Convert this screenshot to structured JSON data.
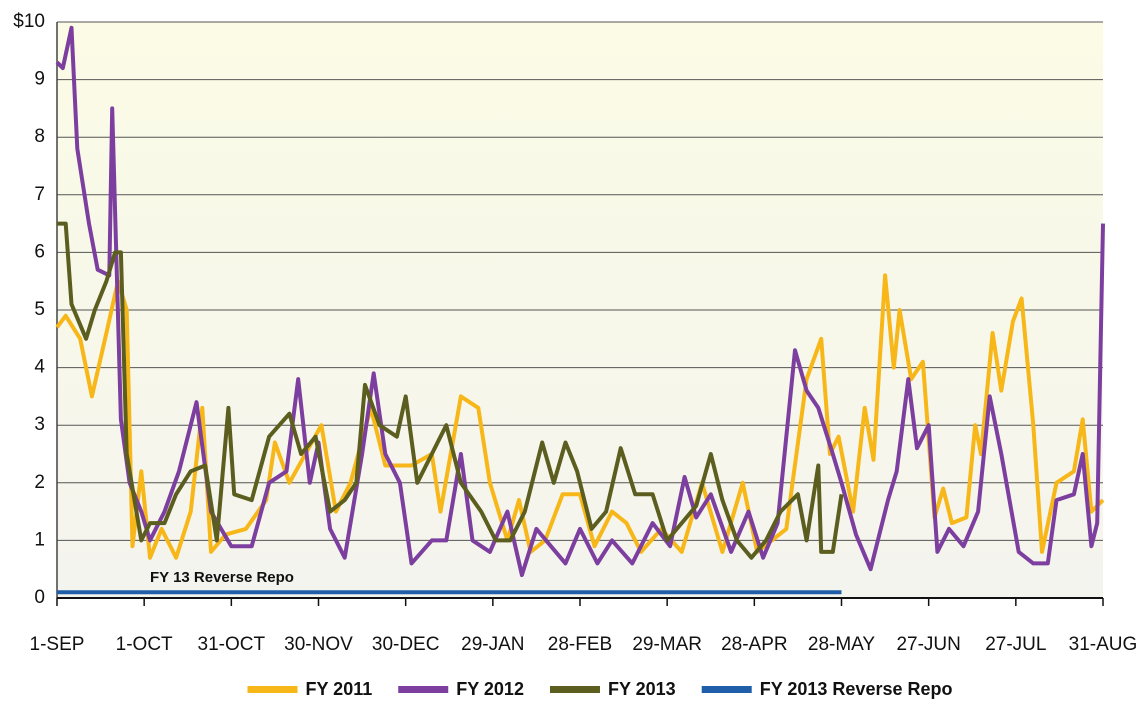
{
  "chart_data": {
    "type": "line",
    "annotation": "FY 13 Reverse Repo",
    "xlim": [
      0,
      360
    ],
    "xticks": [
      {
        "value": 0,
        "label": "1-SEP"
      },
      {
        "value": 30,
        "label": "1-OCT"
      },
      {
        "value": 60,
        "label": "31-OCT"
      },
      {
        "value": 90,
        "label": "30-NOV"
      },
      {
        "value": 120,
        "label": "30-DEC"
      },
      {
        "value": 150,
        "label": "29-JAN"
      },
      {
        "value": 180,
        "label": "28-FEB"
      },
      {
        "value": 210,
        "label": "29-MAR"
      },
      {
        "value": 240,
        "label": "28-APR"
      },
      {
        "value": 270,
        "label": "28-MAY"
      },
      {
        "value": 300,
        "label": "27-JUN"
      },
      {
        "value": 330,
        "label": "27-JUL"
      },
      {
        "value": 360,
        "label": "31-AUG"
      }
    ],
    "ylim": [
      0,
      10
    ],
    "yticks": [
      0,
      1,
      2,
      3,
      4,
      5,
      6,
      7,
      8,
      9,
      {
        "value": 10,
        "label": "$10"
      }
    ],
    "grid": true,
    "legend": "bottom",
    "series": [
      {
        "name": "FY 2011",
        "color": "#f7b718",
        "x": [
          0,
          3,
          8,
          12,
          17,
          21,
          24,
          26,
          29,
          32,
          36,
          41,
          46,
          50,
          53,
          58,
          65,
          72,
          75,
          80,
          91,
          96,
          101,
          108,
          113,
          122,
          129,
          132,
          139,
          145,
          149,
          155,
          159,
          163,
          168,
          174,
          180,
          185,
          191,
          196,
          201,
          208,
          215,
          222,
          229,
          236,
          241,
          246,
          251,
          258,
          263,
          266,
          269,
          274,
          278,
          281,
          285,
          288,
          290,
          294,
          298,
          302,
          305,
          308,
          313,
          316,
          318,
          322,
          325,
          329,
          332,
          336,
          339,
          344,
          350,
          353,
          356,
          360
        ],
        "values": [
          4.7,
          4.9,
          4.5,
          3.5,
          4.6,
          5.5,
          5.0,
          0.9,
          2.2,
          0.7,
          1.2,
          0.7,
          1.5,
          3.3,
          0.8,
          1.1,
          1.2,
          1.7,
          2.7,
          2.0,
          3.0,
          1.5,
          2.0,
          3.3,
          2.3,
          2.3,
          2.5,
          1.5,
          3.5,
          3.3,
          2.0,
          1.0,
          1.7,
          0.8,
          1.0,
          1.8,
          1.8,
          0.9,
          1.5,
          1.3,
          0.8,
          1.2,
          0.8,
          2.0,
          0.8,
          2.0,
          0.8,
          1.0,
          1.2,
          3.8,
          4.5,
          2.5,
          2.8,
          1.5,
          3.3,
          2.4,
          5.6,
          4.0,
          5.0,
          3.8,
          4.1,
          1.4,
          1.9,
          1.3,
          1.4,
          3.0,
          2.5,
          4.6,
          3.6,
          4.8,
          5.2,
          3.0,
          0.8,
          2.0,
          2.2,
          3.1,
          1.5,
          1.7
        ]
      },
      {
        "name": "FY 2012",
        "color": "#7d3f9f",
        "x": [
          0,
          2,
          5,
          7,
          11,
          14,
          18,
          19,
          22,
          25,
          29,
          32,
          37,
          42,
          48,
          53,
          60,
          67,
          73,
          79,
          83,
          87,
          90,
          94,
          99,
          105,
          109,
          113,
          118,
          122,
          129,
          134,
          139,
          143,
          149,
          155,
          160,
          165,
          170,
          175,
          180,
          186,
          191,
          198,
          205,
          211,
          216,
          220,
          225,
          232,
          238,
          243,
          248,
          254,
          258,
          262,
          267,
          270,
          275,
          280,
          286,
          289,
          293,
          296,
          300,
          303,
          307,
          312,
          317,
          321,
          325,
          331,
          336,
          341,
          344,
          350,
          353,
          356,
          358,
          360
        ],
        "values": [
          9.3,
          9.2,
          9.9,
          7.8,
          6.5,
          5.7,
          5.6,
          8.5,
          3.1,
          2.0,
          1.5,
          1.0,
          1.5,
          2.2,
          3.4,
          1.5,
          0.9,
          0.9,
          2.0,
          2.2,
          3.8,
          2.0,
          2.7,
          1.2,
          0.7,
          2.5,
          3.9,
          2.5,
          2.0,
          0.6,
          1.0,
          1.0,
          2.5,
          1.0,
          0.8,
          1.5,
          0.4,
          1.2,
          0.9,
          0.6,
          1.2,
          0.6,
          1.0,
          0.6,
          1.3,
          0.9,
          2.1,
          1.4,
          1.8,
          0.8,
          1.5,
          0.7,
          1.3,
          4.3,
          3.6,
          3.3,
          2.5,
          2.0,
          1.1,
          0.5,
          1.7,
          2.2,
          3.8,
          2.6,
          3.0,
          0.8,
          1.2,
          0.9,
          1.5,
          3.5,
          2.5,
          0.8,
          0.6,
          0.6,
          1.7,
          1.8,
          2.5,
          0.9,
          1.3,
          6.5
        ]
      },
      {
        "name": "FY 2013",
        "color": "#5b5e1e",
        "x": [
          0,
          3,
          5,
          10,
          13,
          17,
          20,
          22,
          24,
          29,
          32,
          37,
          41,
          46,
          51,
          55,
          59,
          61,
          67,
          73,
          80,
          84,
          89,
          94,
          99,
          103,
          106,
          111,
          117,
          120,
          124,
          129,
          134,
          139,
          146,
          151,
          156,
          161,
          167,
          171,
          175,
          179,
          184,
          189,
          194,
          199,
          205,
          210,
          215,
          220,
          225,
          229,
          234,
          239,
          244,
          249,
          255,
          258,
          262,
          263,
          267,
          270
        ],
        "values": [
          6.5,
          6.5,
          5.1,
          4.5,
          5.0,
          5.5,
          6.0,
          6.0,
          2.5,
          1.0,
          1.3,
          1.3,
          1.8,
          2.2,
          2.3,
          1.0,
          3.3,
          1.8,
          1.7,
          2.8,
          3.2,
          2.5,
          2.8,
          1.5,
          1.7,
          2.0,
          3.7,
          3.0,
          2.8,
          3.5,
          2.0,
          2.5,
          3.0,
          2.0,
          1.5,
          1.0,
          1.0,
          1.5,
          2.7,
          2.0,
          2.7,
          2.2,
          1.2,
          1.5,
          2.6,
          1.8,
          1.8,
          1.0,
          1.3,
          1.6,
          2.5,
          1.7,
          1.0,
          0.7,
          1.0,
          1.5,
          1.8,
          1.0,
          2.3,
          0.8,
          0.8,
          1.8
        ]
      },
      {
        "name": "FY 2013 Reverse Repo",
        "color": "#1f5ea8",
        "x": [
          0,
          90,
          180,
          270
        ],
        "values": [
          0.1,
          0.1,
          0.1,
          0.1
        ]
      }
    ]
  }
}
